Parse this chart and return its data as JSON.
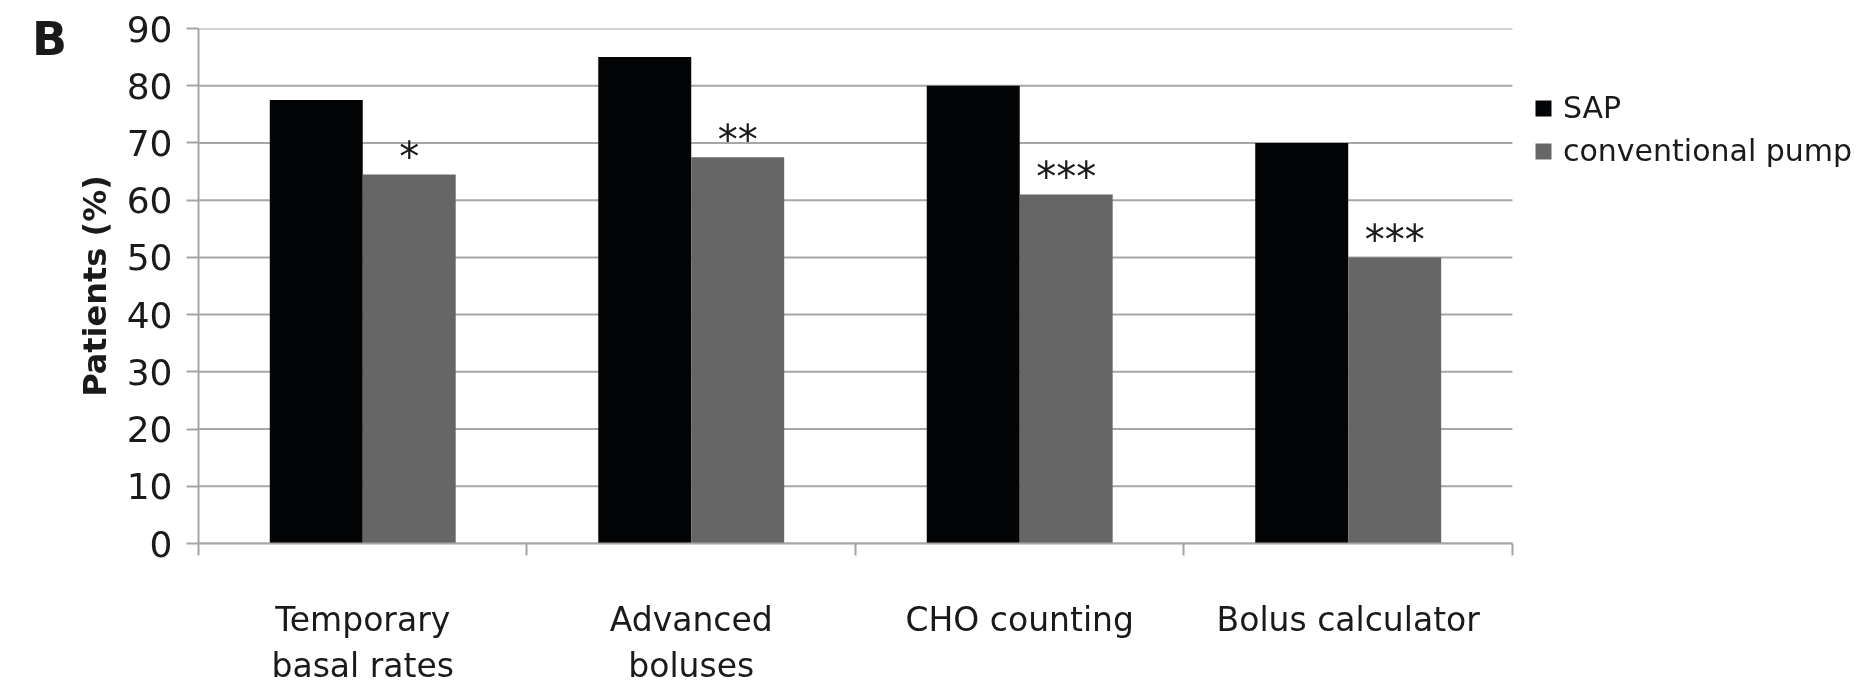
{
  "chart_data": {
    "type": "bar",
    "title": "B",
    "ylabel": "Patients (%)",
    "categories": [
      "Temporary\nbasal rates",
      "Advanced\nboluses",
      "CHO counting",
      "Bolus calculator"
    ],
    "series": [
      {
        "name": "SAP",
        "color": "#030405",
        "values": [
          77.5,
          85,
          80,
          70
        ]
      },
      {
        "name": "conventional pump",
        "color": "#666666",
        "values": [
          64.5,
          67.5,
          61,
          50
        ]
      }
    ],
    "ylim": [
      0,
      90
    ],
    "yticks": [
      0,
      10,
      20,
      30,
      40,
      50,
      60,
      70,
      80,
      90
    ],
    "grid": "y",
    "legend": "right",
    "annotations": [
      {
        "text": "*",
        "x": "Temporary\nbasal rates",
        "y": 64.5
      },
      {
        "text": "**",
        "x": "Advanced\nboluses",
        "y": 67.5
      },
      {
        "text": "***",
        "x": "CHO counting",
        "y": 61
      },
      {
        "text": "***",
        "x": "Bolus calculator",
        "y": 50
      }
    ]
  }
}
